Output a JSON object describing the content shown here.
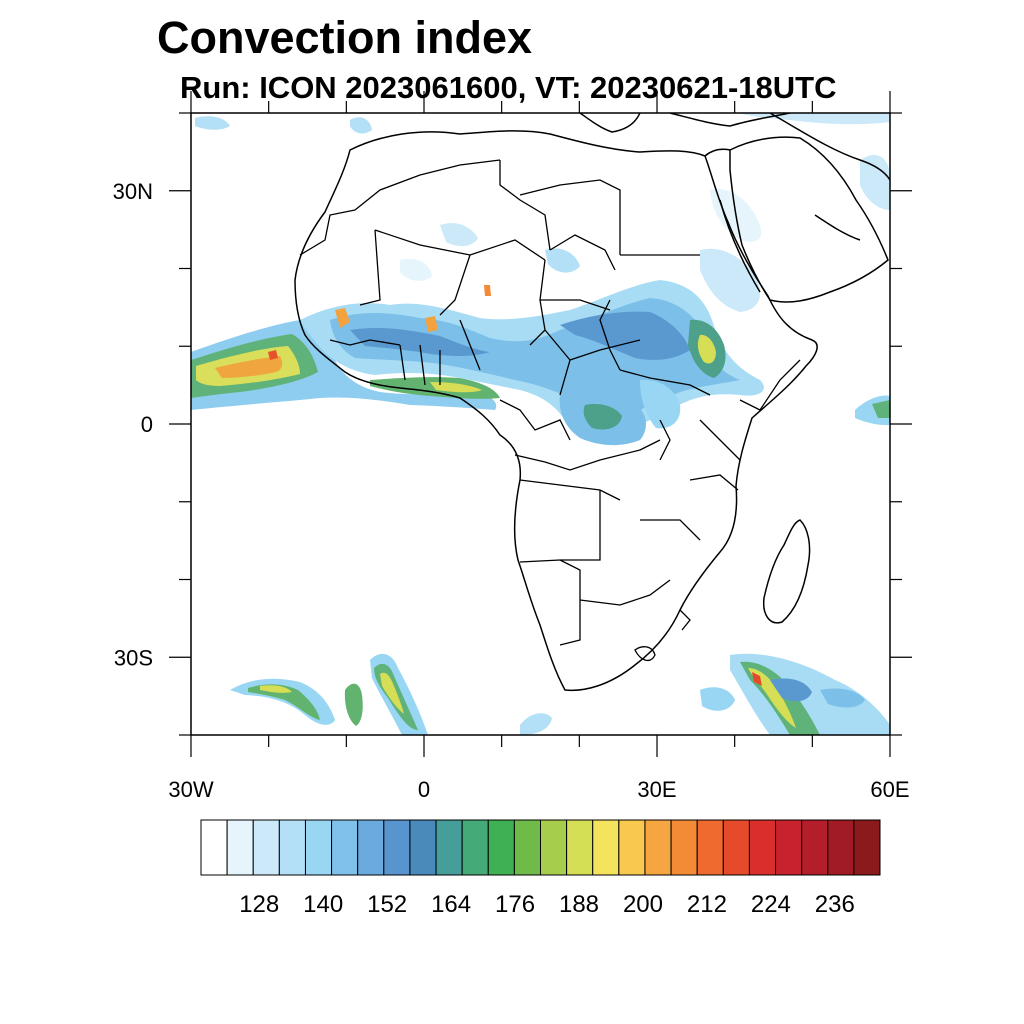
{
  "title": "Convection index",
  "subtitle": "Run: ICON 2023061600,  VT: 20230621-18UTC",
  "map": {
    "lon_range": [
      -30,
      60
    ],
    "lat_range": [
      -40,
      40
    ],
    "lat_ticks": [
      {
        "value": 30,
        "label": "30N"
      },
      {
        "value": 0,
        "label": "0"
      },
      {
        "value": -30,
        "label": "30S"
      }
    ],
    "lon_ticks": [
      {
        "value": -30,
        "label": "30W"
      },
      {
        "value": 0,
        "label": "0"
      },
      {
        "value": 30,
        "label": "30E"
      },
      {
        "value": 60,
        "label": "60E"
      }
    ]
  },
  "colorbar": {
    "colors": [
      "#ffffff",
      "#e6f5fc",
      "#cbe9f8",
      "#b3e0f6",
      "#98d6f4",
      "#7fc1ea",
      "#6aaadf",
      "#5895cf",
      "#4a8abb",
      "#459e9a",
      "#44aa77",
      "#3fb155",
      "#6fba48",
      "#a7cd4c",
      "#d5df55",
      "#f3e35d",
      "#f8c84f",
      "#f6a640",
      "#f38a36",
      "#ee6a2e",
      "#e54a2a",
      "#d92e2b",
      "#c7222d",
      "#b41d2a",
      "#a01b25",
      "#8b1a1c"
    ],
    "tick_labels": [
      "128",
      "140",
      "152",
      "164",
      "176",
      "188",
      "200",
      "212",
      "224",
      "236"
    ]
  }
}
